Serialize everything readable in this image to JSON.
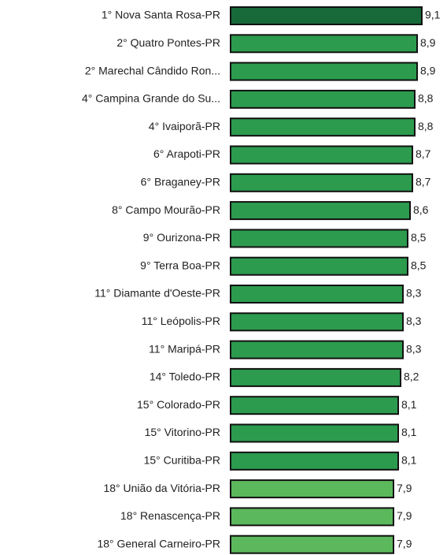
{
  "chart_data": {
    "type": "hbar",
    "categories": [
      "1° Nova Santa Rosa-PR",
      "2° Quatro Pontes-PR",
      "2° Marechal Cândido Ron...",
      "4° Campina Grande do Su...",
      "4° Ivaiporã-PR",
      "6° Arapoti-PR",
      "6° Braganey-PR",
      "8° Campo Mourão-PR",
      "9° Ourizona-PR",
      "9° Terra Boa-PR",
      "11° Diamante d'Oeste-PR",
      "11° Leópolis-PR",
      "11° Maripá-PR",
      "14° Toledo-PR",
      "15° Colorado-PR",
      "15° Vitorino-PR",
      "15° Curitiba-PR",
      "18° União da Vitória-PR",
      "18° Renascença-PR",
      "18° General Carneiro-PR"
    ],
    "values": [
      9.1,
      8.9,
      8.9,
      8.8,
      8.8,
      8.7,
      8.7,
      8.6,
      8.5,
      8.5,
      8.3,
      8.3,
      8.3,
      8.2,
      8.1,
      8.1,
      8.1,
      7.9,
      7.9,
      7.9
    ],
    "value_labels": [
      "9,1",
      "8,9",
      "8,9",
      "8,8",
      "8,8",
      "8,7",
      "8,7",
      "8,6",
      "8,5",
      "8,5",
      "8,3",
      "8,3",
      "8,3",
      "8,2",
      "8,1",
      "8,1",
      "8,1",
      "7,9",
      "7,9",
      "7,9"
    ],
    "colors": [
      "#17693a",
      "#2c9b4e",
      "#2c9b4e",
      "#2c9b4e",
      "#2c9b4e",
      "#2c9b4e",
      "#2c9b4e",
      "#2c9b4e",
      "#2c9b4e",
      "#2c9b4e",
      "#2c9b4e",
      "#2c9b4e",
      "#2c9b4e",
      "#2c9b4e",
      "#2c9b4e",
      "#2c9b4e",
      "#2c9b4e",
      "#5cb85c",
      "#5cb85c",
      "#5cb85c"
    ],
    "xlim": [
      1,
      10
    ]
  }
}
